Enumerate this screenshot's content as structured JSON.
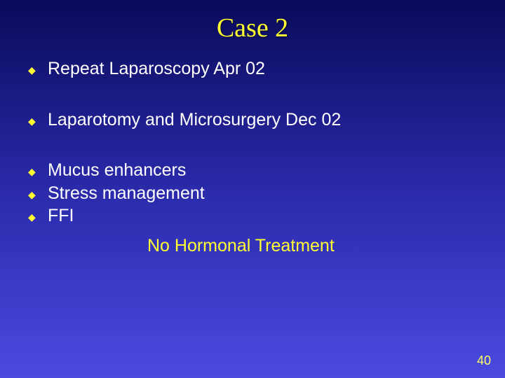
{
  "slide": {
    "title": "Case 2",
    "bullets": [
      "Repeat Laparoscopy Apr 02",
      "Laparotomy and Microsurgery Dec 02",
      "Mucus enhancers",
      "Stress management",
      "FFI"
    ],
    "subline": "No Hormonal Treatment",
    "page_number": "40",
    "colors": {
      "title_color": "#ffff33",
      "body_color": "#ffffff",
      "bullet_color": "#ffff33",
      "subline_color": "#ffff33",
      "bg_top": "#0a0a5a",
      "bg_mid": "#2a2aaa",
      "bg_bottom": "#4a4ae0"
    },
    "fonts": {
      "title_family": "Times New Roman",
      "title_size_pt": 28,
      "body_family": "Arial",
      "body_size_pt": 19
    }
  }
}
